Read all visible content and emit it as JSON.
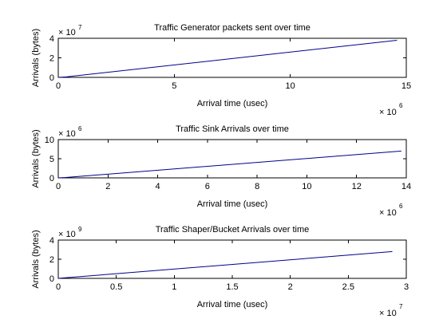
{
  "figure": {
    "background": "#ffffff",
    "line_color": "#00008b"
  },
  "chart_data": [
    {
      "type": "line",
      "title": "Traffic Generator packets sent over time",
      "xlabel": "Arrival time (usec)",
      "ylabel": "Arrivals (bytes)",
      "xlim": [
        0,
        15
      ],
      "ylim": [
        0,
        4
      ],
      "x_ticks": [
        0,
        5,
        10,
        15
      ],
      "x_tick_labels": [
        "0",
        "5",
        "10",
        "15"
      ],
      "y_ticks": [
        0,
        2,
        4
      ],
      "y_tick_labels": [
        "0",
        "2",
        "4"
      ],
      "x_multiplier": {
        "base": "× 10",
        "exponent": "6"
      },
      "y_multiplier": {
        "base": "× 10",
        "exponent": "7"
      },
      "series": [
        {
          "x": [
            0,
            0.35,
            14.6
          ],
          "y": [
            0,
            0.05,
            3.8
          ]
        }
      ]
    },
    {
      "type": "line",
      "title": "Traffic Sink Arrivals over time",
      "xlabel": "Arrival time (usec)",
      "ylabel": "Arrivals (bytes)",
      "xlim": [
        0,
        14
      ],
      "ylim": [
        0,
        10
      ],
      "x_ticks": [
        0,
        2,
        4,
        6,
        8,
        10,
        12,
        14
      ],
      "x_tick_labels": [
        "0",
        "2",
        "4",
        "6",
        "8",
        "10",
        "12",
        "14"
      ],
      "y_ticks": [
        0,
        5,
        10
      ],
      "y_tick_labels": [
        "0",
        "5",
        "10"
      ],
      "x_multiplier": {
        "base": "× 10",
        "exponent": "6"
      },
      "y_multiplier": {
        "base": "× 10",
        "exponent": "6"
      },
      "series": [
        {
          "x": [
            0,
            0.3,
            13.8
          ],
          "y": [
            0,
            0.1,
            7.0
          ]
        }
      ]
    },
    {
      "type": "line",
      "title": "Traffic Shaper/Bucket Arrivals over time",
      "xlabel": "Arrival time (usec)",
      "ylabel": "Arrivals (bytes)",
      "xlim": [
        0,
        3
      ],
      "ylim": [
        0,
        4
      ],
      "x_ticks": [
        0,
        0.5,
        1,
        1.5,
        2,
        2.5,
        3
      ],
      "x_tick_labels": [
        "0",
        "0.5",
        "1",
        "1.5",
        "2",
        "2.5",
        "3"
      ],
      "y_ticks": [
        0,
        2,
        4
      ],
      "y_tick_labels": [
        "0",
        "2",
        "4"
      ],
      "x_multiplier": {
        "base": "× 10",
        "exponent": "7"
      },
      "y_multiplier": {
        "base": "× 10",
        "exponent": "9"
      },
      "series": [
        {
          "x": [
            0,
            0.05,
            2.88
          ],
          "y": [
            0,
            0.05,
            2.8
          ]
        }
      ]
    }
  ]
}
